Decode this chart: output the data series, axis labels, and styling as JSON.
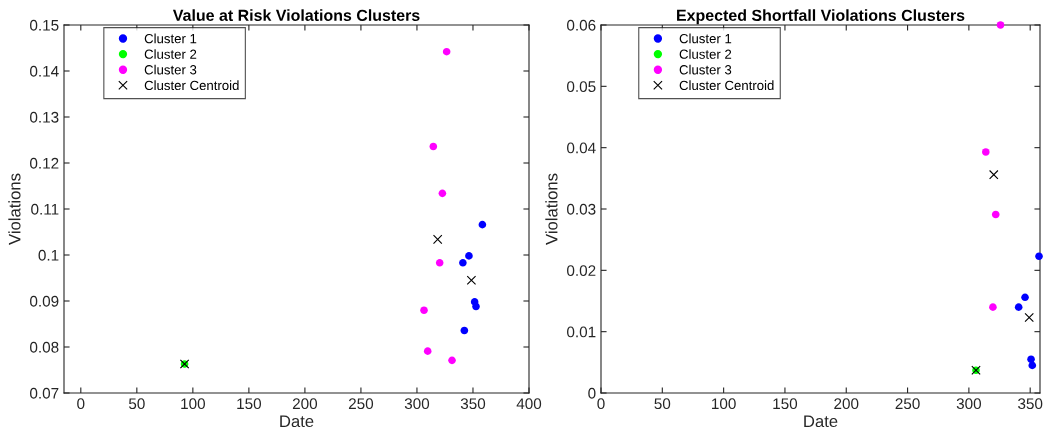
{
  "chart_data": [
    {
      "type": "scatter",
      "title": "Value at Risk Violations Clusters",
      "xlabel": "Date",
      "ylabel": "Violations",
      "xlim": [
        -15,
        400
      ],
      "xticks": [
        0,
        50,
        100,
        150,
        200,
        250,
        300,
        350,
        400
      ],
      "ylim": [
        0.07,
        0.15
      ],
      "yticks": [
        0.07,
        0.08,
        0.09,
        0.1,
        0.11,
        0.12,
        0.13,
        0.14,
        0.15
      ],
      "grid": false,
      "legend": "top left",
      "series": [
        {
          "name": "Cluster 1",
          "color": "#0000ff",
          "marker": "circle",
          "x": [
            358.4,
            346.4,
            341,
            351.5,
            352.7,
            342.3
          ],
          "values": [
            0.1066,
            0.0998,
            0.0983,
            0.0898,
            0.0888,
            0.0836
          ]
        },
        {
          "name": "Cluster 2",
          "color": "#00ff00",
          "marker": "circle",
          "x": [
            92.6
          ],
          "values": [
            0.0763
          ]
        },
        {
          "name": "Cluster 3",
          "color": "#ff00ff",
          "marker": "circle",
          "x": [
            326.5,
            314.6,
            322.7,
            320.3,
            306.3,
            309.6,
            331.3
          ],
          "values": [
            0.1442,
            0.1236,
            0.1134,
            0.0983,
            0.088,
            0.0791,
            0.0771
          ]
        },
        {
          "name": "Cluster Centroid",
          "color": "#000000",
          "marker": "cross",
          "x": [
            318.5,
            348.6,
            92.6
          ],
          "values": [
            0.1034,
            0.0945,
            0.0763
          ]
        }
      ]
    },
    {
      "type": "scatter",
      "title": "Expected Shortfall Violations Clusters",
      "xlabel": "Date",
      "ylabel": "Violations",
      "xlim": [
        0,
        358
      ],
      "xticks": [
        0,
        50,
        100,
        150,
        200,
        250,
        300,
        350
      ],
      "ylim": [
        0,
        0.06
      ],
      "yticks": [
        0,
        0.01,
        0.02,
        0.03,
        0.04,
        0.05,
        0.06
      ],
      "grid": false,
      "legend": "top left",
      "series": [
        {
          "name": "Cluster 1",
          "color": "#0000ff",
          "marker": "circle",
          "x": [
            357.2,
            345.8,
            340.6,
            350.7,
            351.7
          ],
          "values": [
            0.0223,
            0.0156,
            0.014,
            0.0055,
            0.0045
          ]
        },
        {
          "name": "Cluster 2",
          "color": "#00ff00",
          "marker": "circle",
          "x": [
            305.8
          ],
          "values": [
            0.0037
          ]
        },
        {
          "name": "Cluster 3",
          "color": "#ff00ff",
          "marker": "circle",
          "x": [
            325.8,
            313.8,
            321.9,
            319.6
          ],
          "values": [
            0.06,
            0.0393,
            0.0291,
            0.014
          ]
        },
        {
          "name": "Cluster Centroid",
          "color": "#000000",
          "marker": "cross",
          "x": [
            320.3,
            349.2,
            305.8
          ],
          "values": [
            0.0356,
            0.0123,
            0.0037
          ]
        }
      ]
    }
  ]
}
